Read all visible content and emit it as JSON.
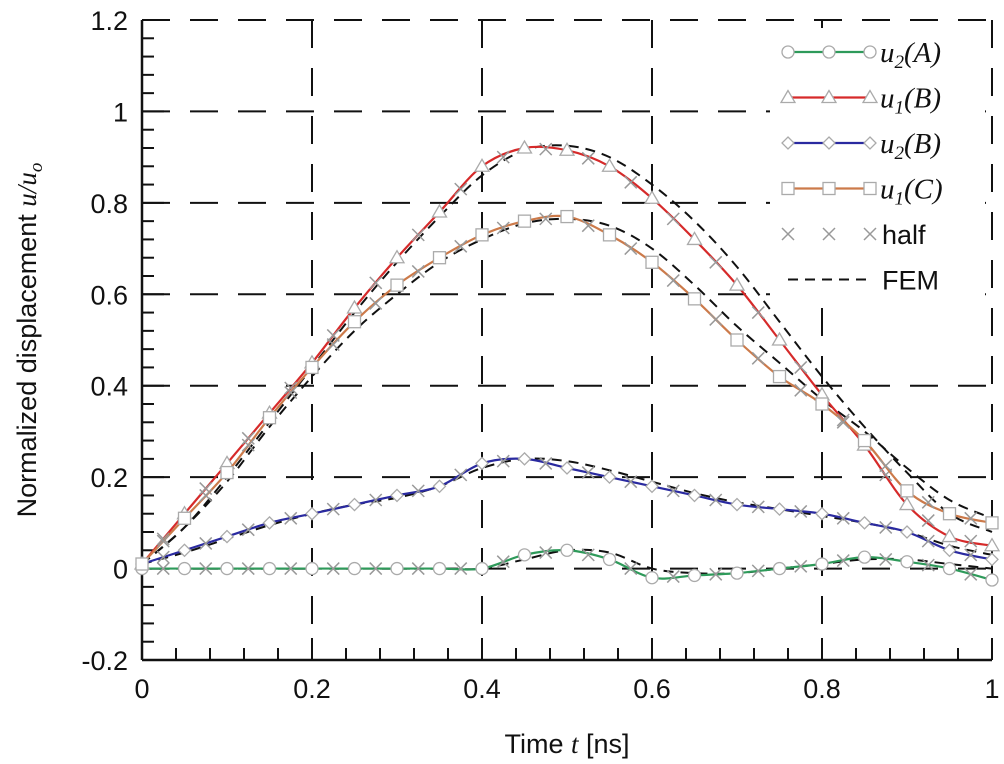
{
  "chart_data": {
    "type": "line",
    "title": "",
    "xlabel": {
      "prefix": "Time ",
      "var": "t",
      "suffix": " [ns]"
    },
    "ylabel": {
      "prefix": "Normalized displacement ",
      "var": "u/u",
      "sub": "o"
    },
    "xlim": [
      0,
      1
    ],
    "ylim": [
      -0.2,
      1.2
    ],
    "xticks": [
      "0",
      "0.2",
      "0.4",
      "0.6",
      "0.8",
      "1"
    ],
    "yticks": [
      "-0.2",
      "0",
      "0.2",
      "0.4",
      "0.6",
      "0.8",
      "1",
      "1.2"
    ],
    "grid": true,
    "legend_position": "top-right",
    "x": [
      0,
      0.05,
      0.1,
      0.15,
      0.2,
      0.25,
      0.3,
      0.35,
      0.4,
      0.45,
      0.5,
      0.55,
      0.6,
      0.65,
      0.7,
      0.75,
      0.8,
      0.85,
      0.9,
      0.95,
      1.0
    ],
    "series": [
      {
        "name": "u2(A)",
        "label": {
          "v": "u",
          "sub": "2",
          "arg": "A"
        },
        "color": "#2e9a5a",
        "marker": "circle",
        "values": [
          0,
          0,
          0,
          0,
          0,
          0,
          0,
          0,
          0,
          0.03,
          0.04,
          0.02,
          -0.02,
          -0.015,
          -0.01,
          0,
          0.01,
          0.025,
          0.015,
          0,
          -0.025
        ],
        "fem": [
          0,
          0,
          0,
          0,
          0,
          0,
          0,
          0,
          0,
          0.02,
          0.04,
          0.035,
          0,
          -0.01,
          -0.01,
          0,
          0.01,
          0.02,
          0.02,
          0.01,
          0
        ]
      },
      {
        "name": "u1(B)",
        "label": {
          "v": "u",
          "sub": "1",
          "arg": "B"
        },
        "color": "#d62a2a",
        "marker": "triangle",
        "values": [
          0.01,
          0.12,
          0.23,
          0.34,
          0.45,
          0.57,
          0.68,
          0.78,
          0.88,
          0.92,
          0.915,
          0.88,
          0.81,
          0.72,
          0.62,
          0.5,
          0.38,
          0.27,
          0.14,
          0.07,
          0.05
        ],
        "fem": [
          0.01,
          0.09,
          0.2,
          0.32,
          0.44,
          0.56,
          0.67,
          0.77,
          0.86,
          0.915,
          0.925,
          0.9,
          0.84,
          0.76,
          0.66,
          0.54,
          0.42,
          0.31,
          0.21,
          0.12,
          0.08
        ]
      },
      {
        "name": "u2(B)",
        "label": {
          "v": "u",
          "sub": "2",
          "arg": "B"
        },
        "color": "#2a2aa0",
        "marker": "diamond",
        "values": [
          0.01,
          0.04,
          0.07,
          0.1,
          0.12,
          0.14,
          0.16,
          0.18,
          0.23,
          0.24,
          0.22,
          0.2,
          0.18,
          0.16,
          0.14,
          0.13,
          0.12,
          0.1,
          0.08,
          0.04,
          0.02
        ],
        "fem": [
          0.01,
          0.035,
          0.065,
          0.095,
          0.12,
          0.14,
          0.155,
          0.18,
          0.22,
          0.24,
          0.235,
          0.215,
          0.19,
          0.165,
          0.145,
          0.13,
          0.115,
          0.1,
          0.08,
          0.05,
          0.03
        ]
      },
      {
        "name": "u1(C)",
        "label": {
          "v": "u",
          "sub": "1",
          "arg": "C"
        },
        "color": "#cc7a4a",
        "marker": "square",
        "values": [
          0.01,
          0.11,
          0.21,
          0.33,
          0.44,
          0.54,
          0.62,
          0.68,
          0.73,
          0.76,
          0.77,
          0.73,
          0.67,
          0.59,
          0.5,
          0.42,
          0.36,
          0.28,
          0.17,
          0.12,
          0.1
        ],
        "fem": [
          0.01,
          0.09,
          0.19,
          0.31,
          0.42,
          0.52,
          0.6,
          0.67,
          0.72,
          0.755,
          0.765,
          0.75,
          0.7,
          0.62,
          0.53,
          0.45,
          0.37,
          0.3,
          0.22,
          0.15,
          0.11
        ]
      }
    ],
    "extra_legend": [
      {
        "name": "half",
        "marker": "cross",
        "color": "#999999"
      },
      {
        "name": "FEM",
        "style": "dashed",
        "color": "#111111"
      }
    ]
  }
}
